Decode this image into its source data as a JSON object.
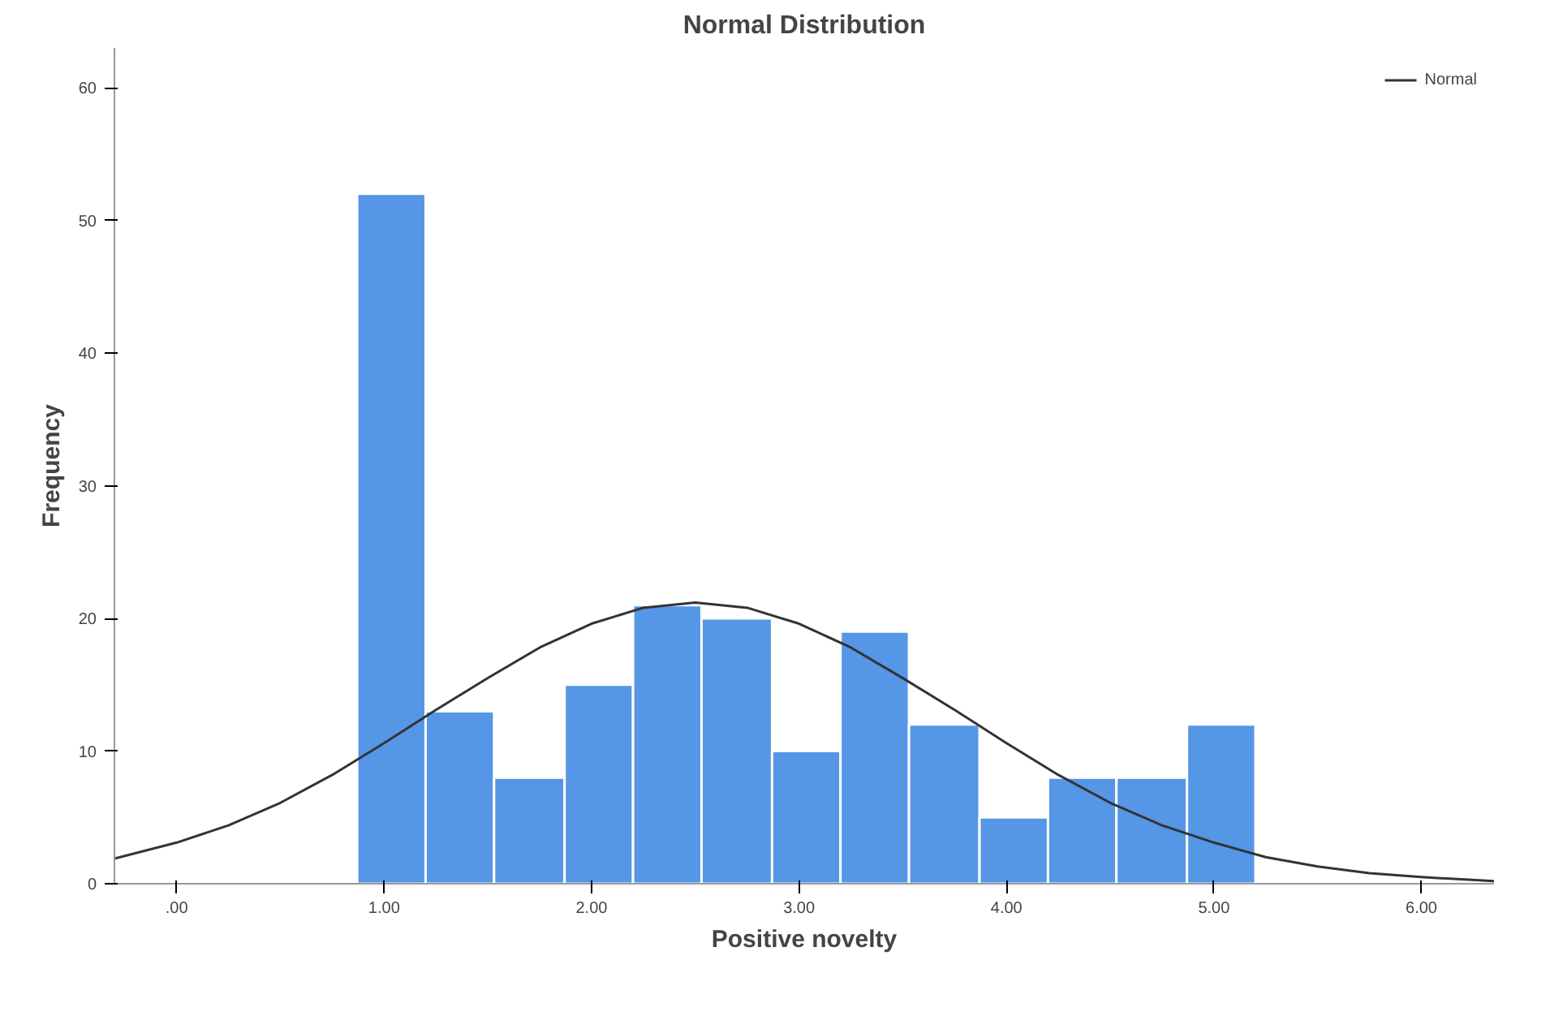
{
  "chart_data": {
    "type": "histogram",
    "title": "Normal Distribution",
    "xlabel": "Positive novelty",
    "ylabel": "Frequency",
    "bins": [
      0.87,
      1.2,
      1.53,
      1.87,
      2.2,
      2.53,
      2.87,
      3.2,
      3.53,
      3.87,
      4.2,
      4.53,
      4.87,
      5.2
    ],
    "values": [
      52,
      13,
      8,
      15,
      21,
      20,
      10,
      19,
      12,
      5,
      8,
      8,
      12
    ],
    "color": "#5596e6",
    "series": [
      {
        "name": "Normal",
        "type": "line",
        "color": "#333333",
        "x": [
          -0.3,
          0,
          0.25,
          0.5,
          0.75,
          1.0,
          1.25,
          1.5,
          1.75,
          2.0,
          2.25,
          2.5,
          2.75,
          3.0,
          3.25,
          3.5,
          3.75,
          4.0,
          4.25,
          4.5,
          4.75,
          5.0,
          5.25,
          5.5,
          5.75,
          6.0,
          6.35
        ],
        "values": [
          1.9,
          3.1,
          4.4,
          6.1,
          8.2,
          10.6,
          13.1,
          15.5,
          17.8,
          19.6,
          20.8,
          21.2,
          20.8,
          19.6,
          17.8,
          15.5,
          13.1,
          10.6,
          8.2,
          6.1,
          4.4,
          3.1,
          2.0,
          1.3,
          0.8,
          0.5,
          0.2
        ]
      }
    ],
    "xlim": [
      -0.3,
      6.35
    ],
    "ylim": [
      0,
      63
    ],
    "xticks": [
      {
        "value": 0,
        "label": ".00"
      },
      {
        "value": 1,
        "label": "1.00"
      },
      {
        "value": 2,
        "label": "2.00"
      },
      {
        "value": 3,
        "label": "3.00"
      },
      {
        "value": 4,
        "label": "4.00"
      },
      {
        "value": 5,
        "label": "5.00"
      },
      {
        "value": 6,
        "label": "6.00"
      }
    ],
    "yticks": [
      0,
      10,
      20,
      30,
      40,
      50,
      60
    ],
    "grid": false,
    "legend": "top right"
  }
}
